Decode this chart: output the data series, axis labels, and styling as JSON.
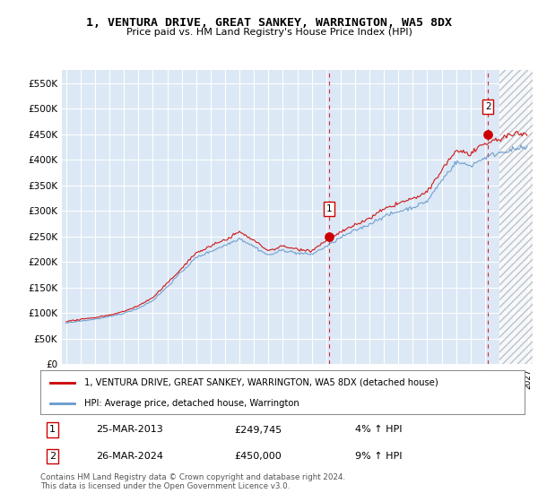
{
  "title": "1, VENTURA DRIVE, GREAT SANKEY, WARRINGTON, WA5 8DX",
  "subtitle": "Price paid vs. HM Land Registry's House Price Index (HPI)",
  "background_color": "#ffffff",
  "plot_bg_color": "#dce8f5",
  "grid_color": "#ffffff",
  "hpi_color": "#6699cc",
  "price_color": "#cc0000",
  "fill_color": "#dce8f5",
  "sale1_year": 2013.22,
  "sale1_price": 249745,
  "sale1_label": "1",
  "sale2_year": 2024.22,
  "sale2_price": 450000,
  "sale2_label": "2",
  "sale1_date": "25-MAR-2013",
  "sale1_hpi": "4% ↑ HPI",
  "sale2_date": "26-MAR-2024",
  "sale2_hpi": "9% ↑ HPI",
  "legend_label1": "1, VENTURA DRIVE, GREAT SANKEY, WARRINGTON, WA5 8DX (detached house)",
  "legend_label2": "HPI: Average price, detached house, Warrington",
  "footer": "Contains HM Land Registry data © Crown copyright and database right 2024.\nThis data is licensed under the Open Government Licence v3.0.",
  "ylim": [
    0,
    575000
  ],
  "yticks": [
    0,
    50000,
    100000,
    150000,
    200000,
    250000,
    300000,
    350000,
    400000,
    450000,
    500000,
    550000
  ],
  "ytick_labels": [
    "£0",
    "£50K",
    "£100K",
    "£150K",
    "£200K",
    "£250K",
    "£300K",
    "£350K",
    "£400K",
    "£450K",
    "£500K",
    "£550K"
  ],
  "xlim_left": 1994.7,
  "xlim_right": 2027.3,
  "hatch_start": 2025.0,
  "hatch_end": 2027.3
}
